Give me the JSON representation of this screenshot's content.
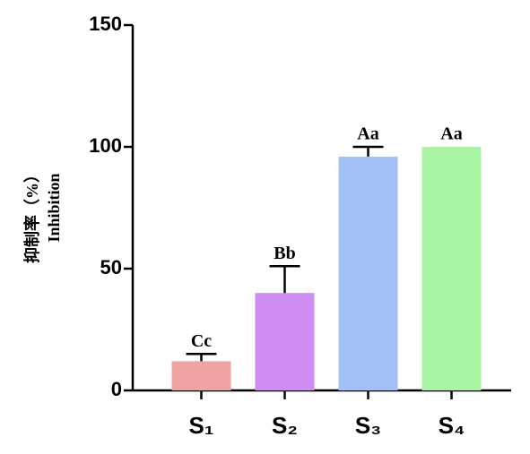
{
  "chart_data": {
    "type": "bar",
    "y_label": [
      "抑制率（%）",
      "Inhibition"
    ],
    "categories": [
      "S₁",
      "S₂",
      "S₃",
      "S₄"
    ],
    "values": [
      12,
      40,
      96,
      100
    ],
    "errors": [
      3,
      11,
      4,
      0
    ],
    "annotations": [
      "Cc",
      "Bb",
      "Aa",
      "Aa"
    ],
    "colors": [
      "#f0a3a3",
      "#cf8cf2",
      "#a3c1f7",
      "#aaf5a3"
    ],
    "ylim": [
      0,
      150
    ],
    "yticks": [
      0,
      50,
      100,
      150
    ]
  }
}
